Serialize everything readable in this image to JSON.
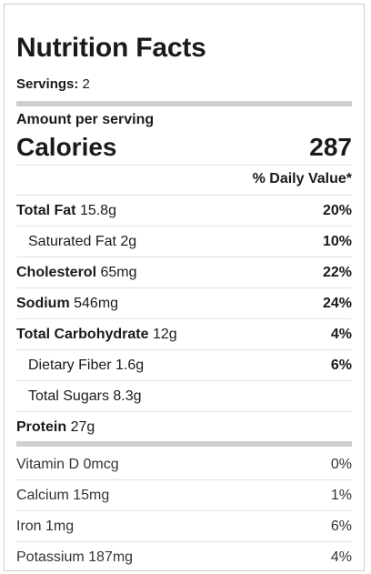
{
  "label": {
    "title": "Nutrition Facts",
    "servings_label": "Servings:",
    "servings_value": "2",
    "amount_per_serving": "Amount per serving",
    "calories_label": "Calories",
    "calories_value": "287",
    "daily_value_header": "% Daily Value*"
  },
  "nutrients": [
    {
      "name": "Total Fat",
      "amount": "15.8g",
      "dv": "20%"
    },
    {
      "name": "Saturated Fat",
      "amount": "2g",
      "dv": "10%"
    },
    {
      "name": "Cholesterol",
      "amount": "65mg",
      "dv": "22%"
    },
    {
      "name": "Sodium",
      "amount": "546mg",
      "dv": "24%"
    },
    {
      "name": "Total Carbohydrate",
      "amount": "12g",
      "dv": "4%"
    },
    {
      "name": "Dietary Fiber",
      "amount": "1.6g",
      "dv": "6%"
    },
    {
      "name": "Total Sugars",
      "amount": "8.3g",
      "dv": ""
    },
    {
      "name": "Protein",
      "amount": "27g",
      "dv": ""
    }
  ],
  "vitamins": [
    {
      "name": "Vitamin D",
      "amount": "0mcg",
      "dv": "0%"
    },
    {
      "name": "Calcium",
      "amount": "15mg",
      "dv": "1%"
    },
    {
      "name": "Iron",
      "amount": "1mg",
      "dv": "6%"
    },
    {
      "name": "Potassium",
      "amount": "187mg",
      "dv": "4%"
    }
  ]
}
